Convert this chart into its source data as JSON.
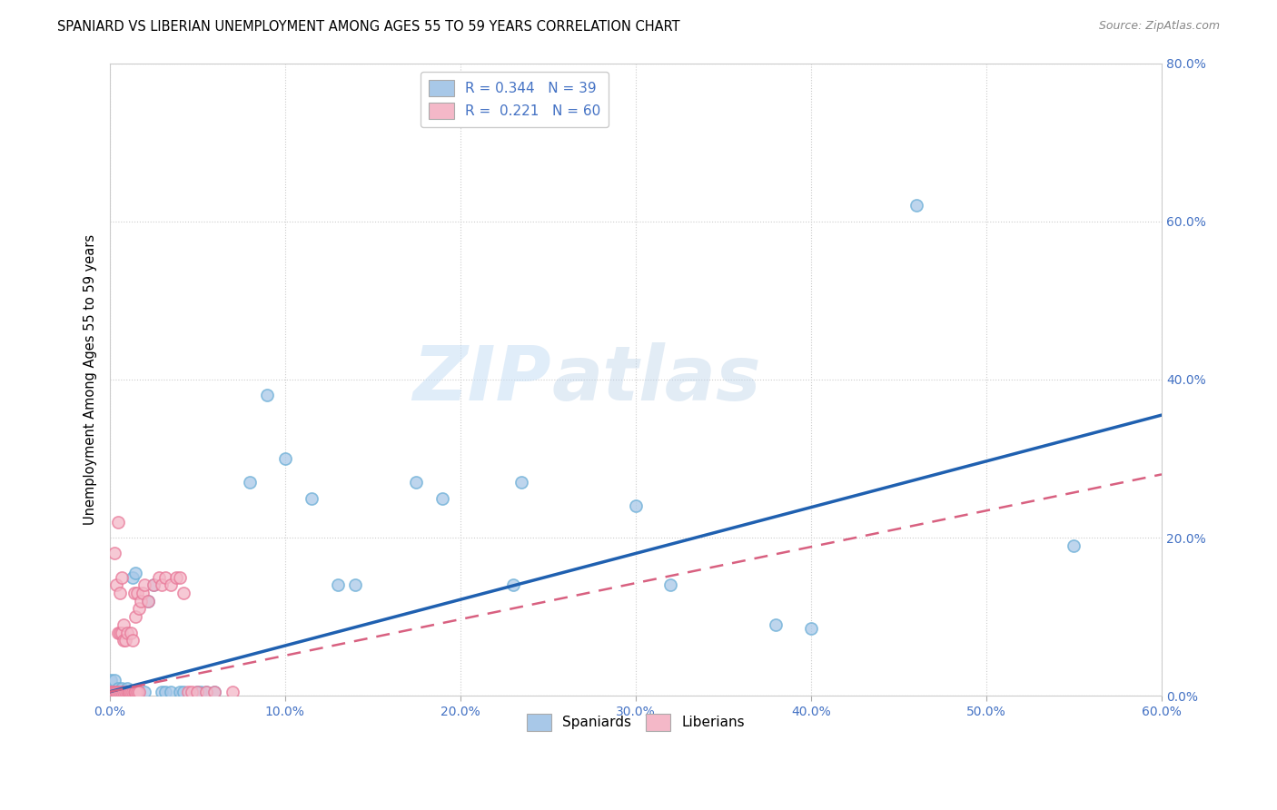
{
  "title": "SPANIARD VS LIBERIAN UNEMPLOYMENT AMONG AGES 55 TO 59 YEARS CORRELATION CHART",
  "source": "Source: ZipAtlas.com",
  "ylabel_label": "Unemployment Among Ages 55 to 59 years",
  "bottom_legend": [
    "Spaniards",
    "Liberians"
  ],
  "watermark_zip": "ZIP",
  "watermark_atlas": "atlas",
  "spaniard_face_color": "#a8c8e8",
  "spaniard_edge_color": "#6aaed6",
  "liberian_face_color": "#f4b8c8",
  "liberian_edge_color": "#e87898",
  "spaniard_line_color": "#1f60b0",
  "liberian_line_color": "#d86080",
  "legend_sp_color": "#a8c8e8",
  "legend_lib_color": "#f4b8c8",
  "xlim": [
    0.0,
    0.6
  ],
  "ylim": [
    0.0,
    0.8
  ],
  "x_tick_vals": [
    0.0,
    0.1,
    0.2,
    0.3,
    0.4,
    0.5,
    0.6
  ],
  "y_tick_vals": [
    0.0,
    0.2,
    0.4,
    0.6,
    0.8
  ],
  "spaniard_points": [
    [
      0.001,
      0.02
    ],
    [
      0.003,
      0.02
    ],
    [
      0.005,
      0.01
    ],
    [
      0.006,
      0.0
    ],
    [
      0.007,
      0.01
    ],
    [
      0.008,
      0.005
    ],
    [
      0.009,
      0.005
    ],
    [
      0.01,
      0.01
    ],
    [
      0.012,
      0.005
    ],
    [
      0.013,
      0.15
    ],
    [
      0.015,
      0.155
    ],
    [
      0.02,
      0.005
    ],
    [
      0.022,
      0.12
    ],
    [
      0.025,
      0.14
    ],
    [
      0.03,
      0.005
    ],
    [
      0.032,
      0.005
    ],
    [
      0.035,
      0.005
    ],
    [
      0.04,
      0.005
    ],
    [
      0.042,
      0.005
    ],
    [
      0.05,
      0.005
    ],
    [
      0.052,
      0.005
    ],
    [
      0.055,
      0.005
    ],
    [
      0.06,
      0.005
    ],
    [
      0.08,
      0.27
    ],
    [
      0.09,
      0.38
    ],
    [
      0.1,
      0.3
    ],
    [
      0.115,
      0.25
    ],
    [
      0.13,
      0.14
    ],
    [
      0.14,
      0.14
    ],
    [
      0.175,
      0.27
    ],
    [
      0.19,
      0.25
    ],
    [
      0.23,
      0.14
    ],
    [
      0.235,
      0.27
    ],
    [
      0.3,
      0.24
    ],
    [
      0.32,
      0.14
    ],
    [
      0.38,
      0.09
    ],
    [
      0.4,
      0.085
    ],
    [
      0.46,
      0.62
    ],
    [
      0.55,
      0.19
    ]
  ],
  "liberian_points": [
    [
      0.0,
      0.005
    ],
    [
      0.001,
      0.005
    ],
    [
      0.001,
      0.005
    ],
    [
      0.002,
      0.005
    ],
    [
      0.002,
      0.005
    ],
    [
      0.002,
      0.005
    ],
    [
      0.003,
      0.005
    ],
    [
      0.003,
      0.005
    ],
    [
      0.003,
      0.18
    ],
    [
      0.004,
      0.005
    ],
    [
      0.004,
      0.005
    ],
    [
      0.004,
      0.14
    ],
    [
      0.005,
      0.005
    ],
    [
      0.005,
      0.08
    ],
    [
      0.005,
      0.22
    ],
    [
      0.006,
      0.005
    ],
    [
      0.006,
      0.08
    ],
    [
      0.006,
      0.13
    ],
    [
      0.007,
      0.005
    ],
    [
      0.007,
      0.08
    ],
    [
      0.007,
      0.15
    ],
    [
      0.008,
      0.005
    ],
    [
      0.008,
      0.07
    ],
    [
      0.008,
      0.09
    ],
    [
      0.009,
      0.005
    ],
    [
      0.009,
      0.07
    ],
    [
      0.01,
      0.005
    ],
    [
      0.01,
      0.08
    ],
    [
      0.011,
      0.005
    ],
    [
      0.011,
      0.005
    ],
    [
      0.012,
      0.005
    ],
    [
      0.012,
      0.08
    ],
    [
      0.013,
      0.005
    ],
    [
      0.013,
      0.07
    ],
    [
      0.014,
      0.005
    ],
    [
      0.014,
      0.13
    ],
    [
      0.015,
      0.005
    ],
    [
      0.015,
      0.1
    ],
    [
      0.016,
      0.005
    ],
    [
      0.016,
      0.13
    ],
    [
      0.017,
      0.005
    ],
    [
      0.017,
      0.11
    ],
    [
      0.018,
      0.12
    ],
    [
      0.019,
      0.13
    ],
    [
      0.02,
      0.14
    ],
    [
      0.022,
      0.12
    ],
    [
      0.025,
      0.14
    ],
    [
      0.028,
      0.15
    ],
    [
      0.03,
      0.14
    ],
    [
      0.032,
      0.15
    ],
    [
      0.035,
      0.14
    ],
    [
      0.038,
      0.15
    ],
    [
      0.04,
      0.15
    ],
    [
      0.042,
      0.13
    ],
    [
      0.045,
      0.005
    ],
    [
      0.047,
      0.005
    ],
    [
      0.05,
      0.005
    ],
    [
      0.055,
      0.005
    ],
    [
      0.06,
      0.005
    ],
    [
      0.07,
      0.005
    ]
  ],
  "sp_line_x0": 0.0,
  "sp_line_x1": 0.6,
  "sp_line_y0": 0.005,
  "sp_line_y1": 0.355,
  "lib_line_x0": 0.0,
  "lib_line_x1": 0.6,
  "lib_line_y0": 0.005,
  "lib_line_y1": 0.28
}
